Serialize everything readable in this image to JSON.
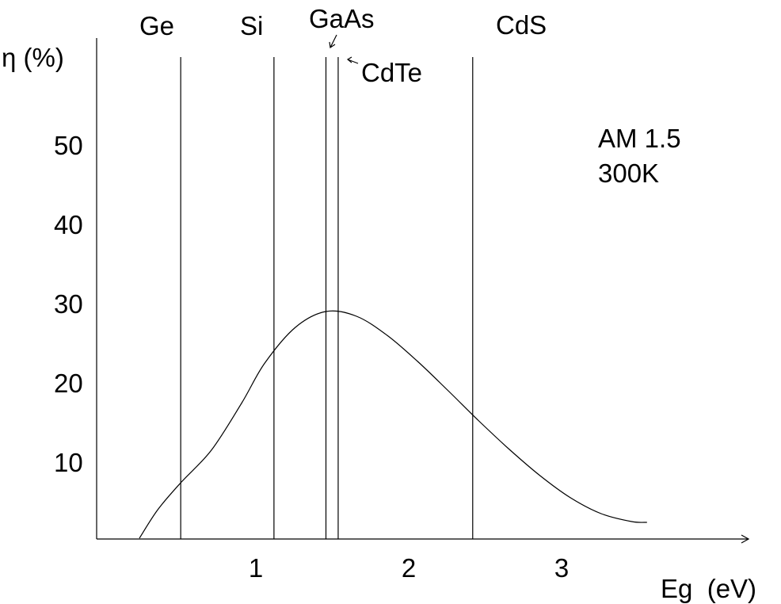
{
  "chart_data": {
    "type": "line",
    "title": "",
    "xlabel": "Eg  (eV)",
    "ylabel": "η (%)",
    "x_ticks": [
      "1",
      "2",
      "3"
    ],
    "x_tick_values": [
      1,
      2,
      3
    ],
    "y_ticks": [
      "10",
      "20",
      "30",
      "40",
      "50"
    ],
    "y_tick_values": [
      10,
      20,
      30,
      40,
      50
    ],
    "xlim": [
      0,
      4.2
    ],
    "ylim": [
      0,
      58
    ],
    "grid": false,
    "annotations": [
      "AM 1.5",
      "300K"
    ],
    "materials": [
      {
        "name": "Ge",
        "eg": 0.55
      },
      {
        "name": "Si",
        "eg": 1.16
      },
      {
        "name": "GaAs",
        "eg": 1.5
      },
      {
        "name": "CdTe",
        "eg": 1.58
      },
      {
        "name": "CdS",
        "eg": 2.46
      }
    ],
    "series": [
      {
        "x": [
          0.28,
          0.4,
          0.55,
          0.75,
          0.95,
          1.1,
          1.3,
          1.5,
          1.7,
          1.9,
          2.1,
          2.3,
          2.5,
          2.7,
          2.9,
          3.1,
          3.3,
          3.5,
          3.6
        ],
        "y": [
          0.4,
          4.0,
          7.4,
          11.5,
          17.5,
          22.5,
          27.0,
          29.0,
          28.4,
          26.0,
          22.7,
          19.0,
          15.2,
          11.6,
          8.3,
          5.5,
          3.5,
          2.5,
          2.4
        ]
      }
    ]
  }
}
